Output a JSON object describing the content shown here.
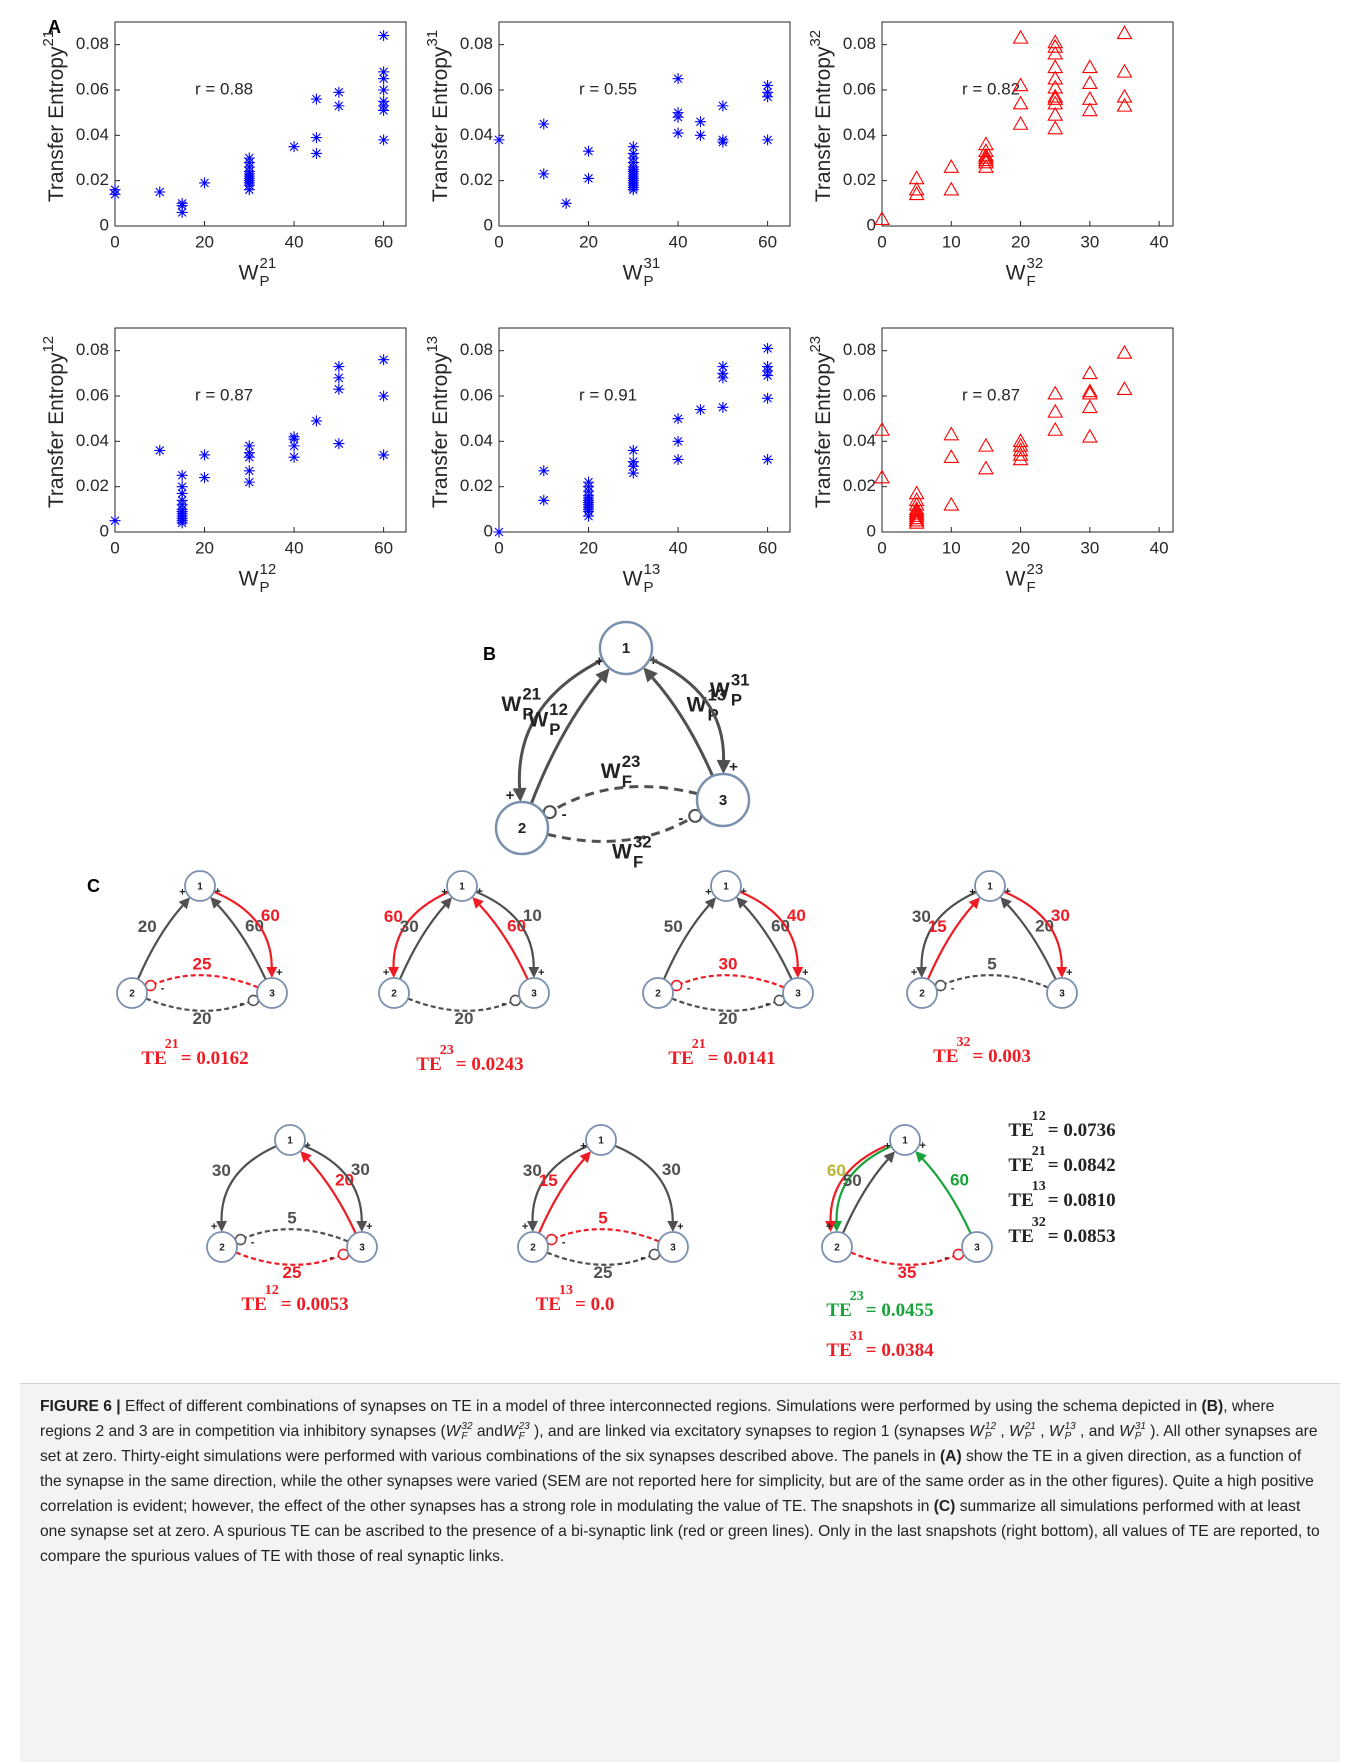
{
  "panel_labels": [
    "A",
    "B",
    "C"
  ],
  "chart_data": [
    {
      "type": "scatter",
      "marker": "asterisk",
      "color": "#0000ff",
      "annotation": "r = 0.88",
      "y_label": "Transfer Entropy",
      "y_label_sup": "21",
      "x_label": "W",
      "x_label_sub": "P",
      "x_label_sup": "21",
      "xlim": [
        0,
        65
      ],
      "ylim": [
        0,
        0.09
      ],
      "xticks": [
        0,
        20,
        40,
        60
      ],
      "yticks": [
        0,
        0.02,
        0.04,
        0.06,
        0.08
      ],
      "x": [
        0,
        0,
        10,
        15,
        15,
        15,
        20,
        30,
        30,
        30,
        30,
        30,
        30,
        30,
        30,
        30,
        30,
        30,
        40,
        45,
        45,
        45,
        50,
        50,
        60,
        60,
        60,
        60,
        60,
        60,
        60,
        60
      ],
      "values": [
        0.014,
        0.016,
        0.015,
        0.006,
        0.009,
        0.01,
        0.019,
        0.016,
        0.018,
        0.019,
        0.02,
        0.021,
        0.022,
        0.023,
        0.024,
        0.026,
        0.028,
        0.03,
        0.035,
        0.032,
        0.039,
        0.056,
        0.053,
        0.059,
        0.038,
        0.051,
        0.053,
        0.055,
        0.06,
        0.065,
        0.068,
        0.084
      ]
    },
    {
      "type": "scatter",
      "marker": "asterisk",
      "color": "#0000ff",
      "annotation": "r = 0.55",
      "y_label": "Transfer Entropy",
      "y_label_sup": "31",
      "x_label": "W",
      "x_label_sub": "P",
      "x_label_sup": "31",
      "xlim": [
        0,
        65
      ],
      "ylim": [
        0,
        0.09
      ],
      "xticks": [
        0,
        20,
        40,
        60
      ],
      "yticks": [
        0,
        0.02,
        0.04,
        0.06,
        0.08
      ],
      "x": [
        0,
        10,
        10,
        15,
        20,
        20,
        30,
        30,
        30,
        30,
        30,
        30,
        30,
        30,
        30,
        30,
        30,
        30,
        30,
        30,
        30,
        40,
        40,
        40,
        40,
        45,
        45,
        50,
        50,
        50,
        60,
        60,
        60,
        60
      ],
      "values": [
        0.038,
        0.023,
        0.045,
        0.01,
        0.021,
        0.033,
        0.016,
        0.017,
        0.018,
        0.019,
        0.02,
        0.021,
        0.022,
        0.023,
        0.024,
        0.025,
        0.026,
        0.028,
        0.03,
        0.032,
        0.035,
        0.041,
        0.048,
        0.05,
        0.065,
        0.04,
        0.046,
        0.037,
        0.038,
        0.053,
        0.038,
        0.057,
        0.059,
        0.062
      ]
    },
    {
      "type": "scatter",
      "marker": "triangle",
      "color": "#ff0000",
      "annotation": "r = 0.82",
      "y_label": "Transfer Entropy",
      "y_label_sup": "32",
      "x_label": "W",
      "x_label_sub": "F",
      "x_label_sup": "32",
      "xlim": [
        0,
        42
      ],
      "ylim": [
        0,
        0.09
      ],
      "xticks": [
        0,
        10,
        20,
        30,
        40
      ],
      "yticks": [
        0,
        0.02,
        0.04,
        0.06,
        0.08
      ],
      "x": [
        0,
        5,
        5,
        5,
        10,
        10,
        15,
        15,
        15,
        15,
        15,
        15,
        15,
        20,
        20,
        20,
        20,
        25,
        25,
        25,
        25,
        25,
        25,
        25,
        25,
        25,
        25,
        25,
        30,
        30,
        30,
        30,
        35,
        35,
        35,
        35
      ],
      "values": [
        0.003,
        0.014,
        0.016,
        0.021,
        0.016,
        0.026,
        0.026,
        0.028,
        0.029,
        0.03,
        0.031,
        0.033,
        0.036,
        0.045,
        0.054,
        0.062,
        0.083,
        0.043,
        0.049,
        0.054,
        0.056,
        0.057,
        0.061,
        0.065,
        0.07,
        0.076,
        0.079,
        0.081,
        0.051,
        0.056,
        0.063,
        0.07,
        0.053,
        0.057,
        0.068,
        0.085
      ]
    },
    {
      "type": "scatter",
      "marker": "asterisk",
      "color": "#0000ff",
      "annotation": "r = 0.87",
      "y_label": "Transfer Entropy",
      "y_label_sup": "12",
      "x_label": "W",
      "x_label_sub": "P",
      "x_label_sup": "12",
      "xlim": [
        0,
        65
      ],
      "ylim": [
        0,
        0.09
      ],
      "xticks": [
        0,
        20,
        40,
        60
      ],
      "yticks": [
        0,
        0.02,
        0.04,
        0.06,
        0.08
      ],
      "x": [
        0,
        10,
        15,
        15,
        15,
        15,
        15,
        15,
        15,
        15,
        15,
        15,
        15,
        15,
        20,
        20,
        30,
        30,
        30,
        30,
        30,
        40,
        40,
        40,
        40,
        45,
        50,
        50,
        50,
        50,
        60,
        60,
        60
      ],
      "values": [
        0.005,
        0.036,
        0.004,
        0.005,
        0.006,
        0.007,
        0.008,
        0.009,
        0.01,
        0.012,
        0.014,
        0.017,
        0.02,
        0.025,
        0.024,
        0.034,
        0.022,
        0.027,
        0.033,
        0.035,
        0.038,
        0.033,
        0.038,
        0.041,
        0.042,
        0.049,
        0.039,
        0.063,
        0.068,
        0.073,
        0.034,
        0.06,
        0.076
      ]
    },
    {
      "type": "scatter",
      "marker": "asterisk",
      "color": "#0000ff",
      "annotation": "r = 0.91",
      "y_label": "Transfer Entropy",
      "y_label_sup": "13",
      "x_label": "W",
      "x_label_sub": "P",
      "x_label_sup": "13",
      "xlim": [
        0,
        65
      ],
      "ylim": [
        0,
        0.09
      ],
      "xticks": [
        0,
        20,
        40,
        60
      ],
      "yticks": [
        0,
        0.02,
        0.04,
        0.06,
        0.08
      ],
      "x": [
        0,
        10,
        10,
        20,
        20,
        20,
        20,
        20,
        20,
        20,
        20,
        20,
        20,
        20,
        20,
        30,
        30,
        30,
        30,
        40,
        40,
        40,
        45,
        50,
        50,
        50,
        50,
        60,
        60,
        60,
        60,
        60,
        60
      ],
      "values": [
        0,
        0.014,
        0.027,
        0.007,
        0.009,
        0.01,
        0.011,
        0.012,
        0.013,
        0.014,
        0.015,
        0.016,
        0.018,
        0.02,
        0.022,
        0.026,
        0.029,
        0.031,
        0.036,
        0.032,
        0.04,
        0.05,
        0.054,
        0.055,
        0.068,
        0.07,
        0.073,
        0.032,
        0.059,
        0.069,
        0.071,
        0.073,
        0.081
      ]
    },
    {
      "type": "scatter",
      "marker": "triangle",
      "color": "#ff0000",
      "annotation": "r = 0.87",
      "y_label": "Transfer Entropy",
      "y_label_sup": "23",
      "x_label": "W",
      "x_label_sub": "F",
      "x_label_sup": "23",
      "xlim": [
        0,
        42
      ],
      "ylim": [
        0,
        0.09
      ],
      "xticks": [
        0,
        10,
        20,
        30,
        40
      ],
      "yticks": [
        0,
        0.02,
        0.04,
        0.06,
        0.08
      ],
      "x": [
        0,
        0,
        5,
        5,
        5,
        5,
        5,
        5,
        5,
        5,
        5,
        5,
        10,
        10,
        10,
        15,
        15,
        20,
        20,
        20,
        20,
        20,
        25,
        25,
        25,
        30,
        30,
        30,
        30,
        30,
        35,
        35
      ],
      "values": [
        0.024,
        0.045,
        0.004,
        0.005,
        0.006,
        0.007,
        0.008,
        0.009,
        0.01,
        0.012,
        0.014,
        0.017,
        0.012,
        0.033,
        0.043,
        0.028,
        0.038,
        0.032,
        0.034,
        0.036,
        0.038,
        0.04,
        0.045,
        0.053,
        0.061,
        0.042,
        0.055,
        0.061,
        0.062,
        0.07,
        0.063,
        0.079
      ]
    }
  ],
  "diagram_b": {
    "nodes": [
      "1",
      "2",
      "3"
    ],
    "edges": [
      {
        "label": {
          "text": "W",
          "sub": "P",
          "sup": "21"
        },
        "color": "#505050",
        "sign": "+"
      },
      {
        "label": {
          "text": "W",
          "sub": "P",
          "sup": "12"
        },
        "color": "#505050",
        "sign": "+"
      },
      {
        "label": {
          "text": "W",
          "sub": "P",
          "sup": "13"
        },
        "color": "#505050",
        "sign": "+"
      },
      {
        "label": {
          "text": "W",
          "sub": "P",
          "sup": "31"
        },
        "color": "#505050",
        "sign": "+"
      },
      {
        "label": {
          "text": "W",
          "sub": "F",
          "sup": "23"
        },
        "color": "#505050",
        "sign": "-"
      },
      {
        "label": {
          "text": "W",
          "sub": "F",
          "sup": "32"
        },
        "color": "#505050",
        "sign": "-"
      }
    ]
  },
  "diagram_c": [
    {
      "nodes": [
        "1",
        "2",
        "3"
      ],
      "edges": [
        null,
        {
          "label": 20,
          "color": "#505050",
          "sign": "+"
        },
        {
          "label": 60,
          "color": "#505050",
          "sign": "+"
        },
        {
          "label": 60,
          "color": "#ee1c25",
          "sign": "+"
        },
        {
          "label": 25,
          "color": "#ee1c25",
          "sign": "-"
        },
        {
          "label": 20,
          "color": "#505050",
          "sign": "-"
        }
      ],
      "te": [
        {
          "text": "TE",
          "sup": "21",
          "rhs": "= 0.0162",
          "color": "#ee1c25"
        }
      ]
    },
    {
      "nodes": [
        "1",
        "2",
        "3"
      ],
      "edges": [
        {
          "label": 60,
          "color": "#ee1c25",
          "sign": "+"
        },
        {
          "label": 30,
          "color": "#505050",
          "sign": "+"
        },
        {
          "label": 60,
          "color": "#ee1c25",
          "sign": "+"
        },
        {
          "label": 10,
          "color": "#505050",
          "sign": "+"
        },
        null,
        {
          "label": 20,
          "color": "#505050",
          "sign": "-"
        }
      ],
      "te": [
        {
          "text": "TE",
          "sup": "23",
          "rhs": "= 0.0243",
          "color": "#ee1c25"
        }
      ]
    },
    {
      "nodes": [
        "1",
        "2",
        "3"
      ],
      "edges": [
        null,
        {
          "label": 50,
          "color": "#505050",
          "sign": "+"
        },
        {
          "label": 60,
          "color": "#505050",
          "sign": "+"
        },
        {
          "label": 40,
          "color": "#ee1c25",
          "sign": "+"
        },
        {
          "label": 30,
          "color": "#ee1c25",
          "sign": "-"
        },
        {
          "label": 20,
          "color": "#505050",
          "sign": "-"
        }
      ],
      "te": [
        {
          "text": "TE",
          "sup": "21",
          "rhs": "= 0.0141",
          "color": "#ee1c25"
        }
      ]
    },
    {
      "nodes": [
        "1",
        "2",
        "3"
      ],
      "edges": [
        {
          "label": 30,
          "color": "#505050",
          "sign": "+"
        },
        {
          "label": 15,
          "color": "#ee1c25",
          "sign": "+"
        },
        {
          "label": 20,
          "color": "#505050",
          "sign": "+"
        },
        {
          "label": 30,
          "color": "#ee1c25",
          "sign": "+"
        },
        {
          "label": 5,
          "color": "#505050",
          "sign": "-"
        },
        null
      ],
      "te": [
        {
          "text": "TE",
          "sup": "32",
          "rhs": "= 0.003",
          "color": "#ee1c25"
        }
      ]
    },
    {
      "nodes": [
        "1",
        "2",
        "3"
      ],
      "edges": [
        {
          "label": 30,
          "color": "#505050",
          "sign": "+"
        },
        null,
        {
          "label": 20,
          "color": "#ee1c25",
          "sign": "+"
        },
        {
          "label": 30,
          "color": "#505050",
          "sign": "+"
        },
        {
          "label": 5,
          "color": "#505050",
          "sign": "-"
        },
        {
          "label": 25,
          "color": "#ee1c25",
          "sign": "-"
        }
      ],
      "te": [
        {
          "text": "TE",
          "sup": "12",
          "rhs": "= 0.0053",
          "color": "#ee1c25"
        }
      ]
    },
    {
      "nodes": [
        "1",
        "2",
        "3"
      ],
      "edges": [
        {
          "label": 30,
          "color": "#505050",
          "sign": "+"
        },
        {
          "label": 15,
          "color": "#ee1c25",
          "sign": "+"
        },
        null,
        {
          "label": 30,
          "color": "#505050",
          "sign": "+"
        },
        {
          "label": 5,
          "color": "#ee1c25",
          "sign": "-"
        },
        {
          "label": 25,
          "color": "#505050",
          "sign": "-"
        }
      ],
      "te": [
        {
          "text": "TE",
          "sup": "13",
          "rhs": "= 0.0",
          "color": "#ee1c25"
        }
      ]
    },
    {
      "nodes": [
        "1",
        "2",
        "3"
      ],
      "edges": [
        {
          "label": 60,
          "color": "#18a33a",
          "color2": "#ee1c25",
          "label_color": "#b8b832",
          "sign": "+"
        },
        {
          "label": 50,
          "color": "#505050",
          "sign": "+"
        },
        {
          "label": 60,
          "color": "#18a33a",
          "sign": "+"
        },
        null,
        null,
        {
          "label": 35,
          "color": "#ee1c25",
          "sign": "-"
        }
      ],
      "te": [
        {
          "text": "TE",
          "sup": "23",
          "rhs": "= 0.0455",
          "color": "#18a33a"
        },
        {
          "text": "TE",
          "sup": "31",
          "rhs": "= 0.0384",
          "color": "#ee1c25"
        },
        {
          "text": "TE",
          "sup": "12",
          "rhs": "= 0.0736",
          "color": "#222222"
        },
        {
          "text": "TE",
          "sup": "21",
          "rhs": "= 0.0842",
          "color": "#222222"
        },
        {
          "text": "TE",
          "sup": "13",
          "rhs": "= 0.0810",
          "color": "#222222"
        },
        {
          "text": "TE",
          "sup": "32",
          "rhs": "= 0.0853",
          "color": "#222222"
        }
      ]
    }
  ],
  "caption": [
    {
      "t": "FIGURE 6 |",
      "b": true
    },
    {
      "t": " Effect of different combinations of synapses on TE in a model of three interconnected regions. Simulations were performed by using the schema depicted in "
    },
    {
      "t": "(B)",
      "b": true
    },
    {
      "t": ", where regions 2 and 3 are in competition via inhibitory synapses ("
    },
    {
      "t": "W",
      "sub": "F",
      "sup": "32"
    },
    {
      "t": " and"
    },
    {
      "t": "W",
      "sub": "F",
      "sup": "23"
    },
    {
      "t": " ), and are linked via excitatory synapses to region 1 (synapses "
    },
    {
      "t": "W",
      "sub": "P",
      "sup": "12"
    },
    {
      "t": " , "
    },
    {
      "t": "W",
      "sub": "P",
      "sup": "21"
    },
    {
      "t": " , "
    },
    {
      "t": "W",
      "sub": "P",
      "sup": "13"
    },
    {
      "t": " , and "
    },
    {
      "t": "W",
      "sub": "P",
      "sup": "31"
    },
    {
      "t": " ). All other synapses are set at zero. Thirty-eight simulations were performed with various combinations of the six synapses described above. The panels in "
    },
    {
      "t": "(A)",
      "b": true
    },
    {
      "t": " show the TE in a given direction, as a function of the synapse in the same direction, while the other synapses were varied (SEM are not reported here for simplicity, but are of the same order as in the other figures). Quite a high positive correlation is evident; however, the effect of the other synapses has a strong role in modulating the value of TE. The snapshots in "
    },
    {
      "t": "(C)",
      "b": true
    },
    {
      "t": " summarize all simulations performed with at least one synapse set at zero. A spurious TE can be ascribed to the presence of a bi-synaptic link (red or green lines). Only in the last snapshots (right bottom), all values of TE are reported, to compare the spurious values of TE with those of real synaptic links."
    }
  ]
}
